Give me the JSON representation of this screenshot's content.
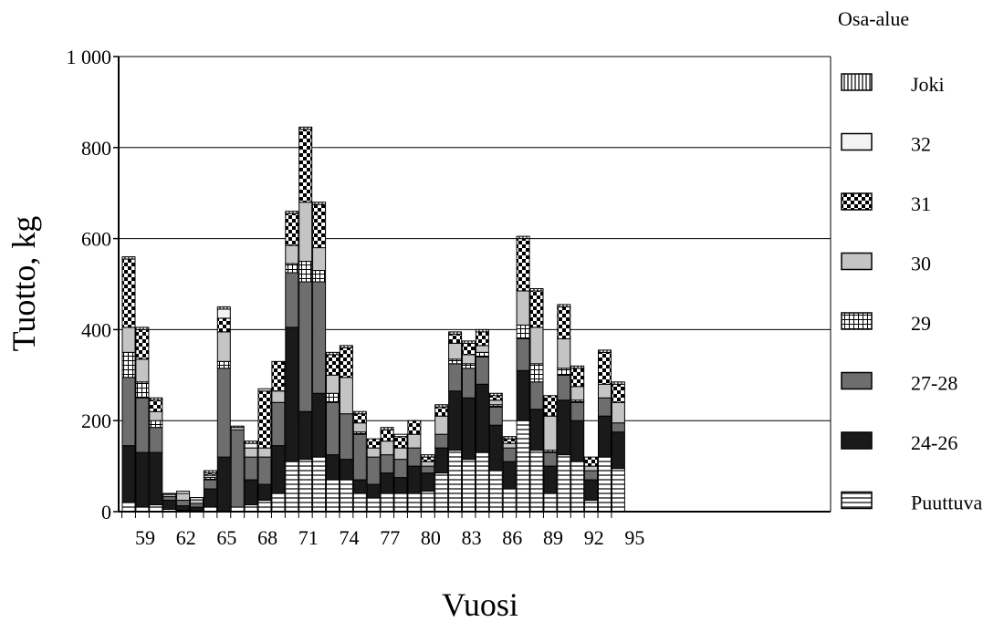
{
  "chart_data": {
    "type": "bar",
    "stacked": true,
    "ylabel": "Tuotto, kg",
    "xlabel": "Vuosi",
    "legend_title": "Osa-alue",
    "legend_position": "right",
    "ylim": [
      0,
      1000
    ],
    "yticks": [
      0,
      200,
      400,
      600,
      800,
      1000
    ],
    "ytick_labels": [
      "0",
      "200",
      "400",
      "600",
      "800",
      "1 000"
    ],
    "grid": true,
    "categories": [
      "59",
      "60",
      "61",
      "62",
      "63",
      "64",
      "65",
      "66",
      "67",
      "68",
      "69",
      "70",
      "71",
      "72",
      "73",
      "74",
      "75",
      "76",
      "77",
      "78",
      "79",
      "80",
      "81",
      "82",
      "83",
      "84",
      "85",
      "86",
      "87",
      "88",
      "89",
      "90",
      "91",
      "92",
      "93",
      "94",
      "95"
    ],
    "xtick_labels": [
      "59",
      "62",
      "65",
      "68",
      "71",
      "74",
      "77",
      "80",
      "83",
      "86",
      "89",
      "92",
      "95"
    ],
    "series": [
      {
        "name": "Puuttuva",
        "values": [
          20,
          10,
          15,
          5,
          3,
          2,
          10,
          0,
          10,
          15,
          25,
          40,
          110,
          115,
          120,
          70,
          70,
          40,
          30,
          40,
          40,
          40,
          45,
          85,
          135,
          115,
          130,
          90,
          50,
          200,
          135,
          40,
          125,
          110,
          25,
          120,
          95
        ]
      },
      {
        "name": "24-26",
        "values": [
          125,
          120,
          115,
          20,
          10,
          8,
          40,
          120,
          0,
          55,
          35,
          105,
          295,
          105,
          140,
          55,
          45,
          30,
          30,
          45,
          35,
          60,
          40,
          55,
          130,
          135,
          150,
          100,
          60,
          110,
          90,
          60,
          120,
          90,
          45,
          90,
          80
        ]
      },
      {
        "name": "27-28",
        "values": [
          150,
          120,
          55,
          8,
          12,
          8,
          20,
          195,
          170,
          50,
          60,
          95,
          120,
          285,
          245,
          115,
          100,
          100,
          60,
          40,
          40,
          40,
          15,
          30,
          60,
          65,
          60,
          40,
          30,
          70,
          60,
          30,
          55,
          40,
          20,
          40,
          20
        ]
      },
      {
        "name": "29",
        "values": [
          55,
          35,
          15,
          0,
          0,
          0,
          5,
          15,
          0,
          0,
          0,
          0,
          20,
          45,
          25,
          20,
          0,
          5,
          0,
          0,
          0,
          0,
          0,
          0,
          10,
          10,
          10,
          5,
          0,
          30,
          40,
          5,
          15,
          5,
          0,
          0,
          0
        ]
      },
      {
        "name": "30",
        "values": [
          55,
          50,
          20,
          5,
          15,
          8,
          5,
          65,
          0,
          20,
          20,
          25,
          40,
          130,
          50,
          40,
          80,
          20,
          20,
          30,
          25,
          30,
          10,
          40,
          35,
          20,
          15,
          10,
          10,
          75,
          80,
          75,
          65,
          30,
          10,
          30,
          45
        ]
      },
      {
        "name": "31",
        "values": [
          150,
          65,
          25,
          0,
          0,
          0,
          5,
          30,
          0,
          0,
          125,
          65,
          70,
          160,
          95,
          45,
          65,
          20,
          20,
          25,
          25,
          30,
          10,
          20,
          20,
          25,
          30,
          10,
          10,
          115,
          80,
          45,
          70,
          40,
          20,
          70,
          40
        ]
      },
      {
        "name": "32",
        "values": [
          0,
          0,
          0,
          0,
          5,
          5,
          0,
          20,
          5,
          10,
          5,
          0,
          0,
          0,
          0,
          0,
          0,
          0,
          0,
          0,
          5,
          0,
          0,
          0,
          0,
          0,
          0,
          0,
          0,
          0,
          0,
          0,
          0,
          0,
          0,
          0,
          0
        ]
      },
      {
        "name": "Joki",
        "values": [
          5,
          5,
          5,
          2,
          0,
          0,
          5,
          5,
          3,
          5,
          0,
          0,
          5,
          5,
          5,
          5,
          5,
          5,
          0,
          5,
          0,
          0,
          5,
          5,
          5,
          5,
          5,
          5,
          5,
          5,
          5,
          0,
          5,
          5,
          0,
          5,
          5
        ]
      }
    ],
    "legend_order": [
      "Joki",
      "32",
      "31",
      "30",
      "29",
      "27-28",
      "24-26",
      "Puuttuva"
    ]
  }
}
